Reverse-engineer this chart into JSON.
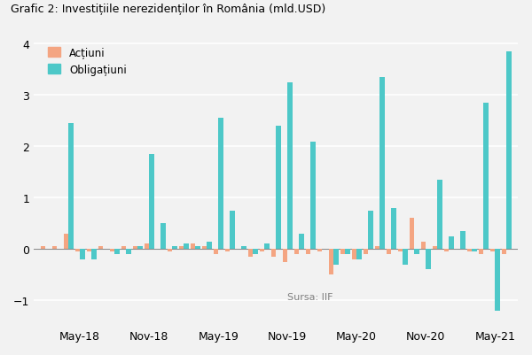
{
  "title": "Grafic 2: Investițiile nerezidenților în România (mld.USD)",
  "source_text": "Sursa: IIF",
  "legend_labels": [
    "Acțiuni",
    "Obligațiuni"
  ],
  "colors": {
    "actiuni": "#F4A582",
    "obligatiuni": "#4DC8C8"
  },
  "background_color": "#F2F2F2",
  "ylim": [
    -1.5,
    4.3
  ],
  "yticks": [
    -1,
    0,
    1,
    2,
    3,
    4
  ],
  "xtick_labels": [
    "May-18",
    "Nov-18",
    "May-19",
    "Nov-19",
    "May-20",
    "Nov-20",
    "May-21"
  ],
  "xtick_indices": [
    3,
    9,
    15,
    21,
    27,
    33,
    39
  ],
  "actiuni_values": [
    0.05,
    0.05,
    0.3,
    -0.05,
    -0.05,
    0.05,
    -0.05,
    0.05,
    0.05,
    0.1,
    0.0,
    -0.05,
    0.05,
    0.1,
    0.05,
    -0.1,
    -0.05,
    0.0,
    -0.15,
    -0.05,
    -0.15,
    -0.25,
    -0.1,
    -0.1,
    -0.05,
    -0.5,
    -0.1,
    -0.2,
    -0.1,
    0.05,
    -0.1,
    -0.05,
    0.6,
    0.15,
    0.05,
    -0.05,
    0.0,
    -0.05,
    -0.1,
    -0.05,
    -0.1
  ],
  "obligatiuni_values": [
    0.0,
    0.0,
    2.45,
    -0.2,
    -0.2,
    0.0,
    -0.1,
    -0.1,
    0.05,
    1.85,
    0.5,
    0.05,
    0.1,
    0.05,
    0.15,
    2.55,
    0.75,
    0.05,
    -0.1,
    0.1,
    2.4,
    3.25,
    0.3,
    2.1,
    0.0,
    -0.3,
    -0.1,
    -0.2,
    0.75,
    3.35,
    0.8,
    -0.3,
    -0.1,
    -0.4,
    1.35,
    0.25,
    0.35,
    -0.05,
    2.85,
    -1.2,
    3.85
  ]
}
